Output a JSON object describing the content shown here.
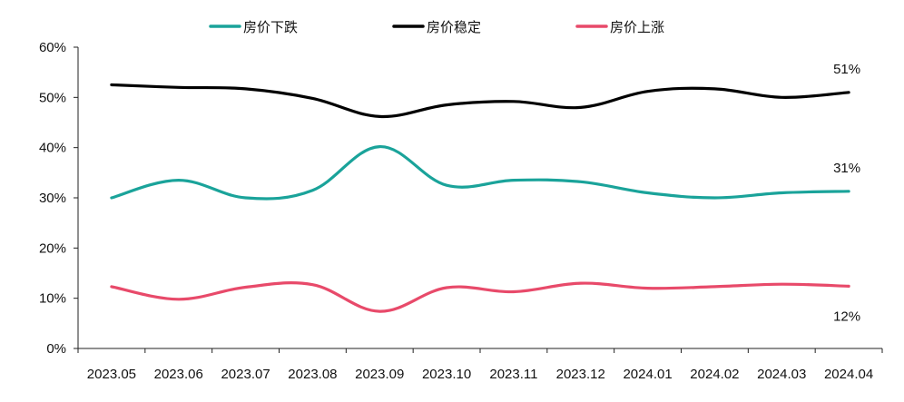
{
  "chart_data": {
    "type": "line",
    "categories": [
      "2023.05",
      "2023.06",
      "2023.07",
      "2023.08",
      "2023.09",
      "2023.10",
      "2023.11",
      "2023.12",
      "2024.01",
      "2024.02",
      "2024.03",
      "2024.04"
    ],
    "series": [
      {
        "name": "房价下跌",
        "color": "#1aa39a",
        "values": [
          30,
          33.5,
          30,
          31.5,
          40.2,
          32.5,
          33.5,
          33.2,
          31,
          30,
          31,
          31.3
        ]
      },
      {
        "name": "房价稳定",
        "color": "#000000",
        "values": [
          52.5,
          52,
          51.7,
          49.8,
          46.2,
          48.5,
          49.2,
          48,
          51.2,
          51.7,
          50,
          51
        ]
      },
      {
        "name": "房价上涨",
        "color": "#e84a6a",
        "values": [
          12.3,
          9.8,
          12.2,
          12.7,
          7.4,
          12.1,
          11.3,
          13,
          12,
          12.3,
          12.8,
          12.4
        ]
      }
    ],
    "yticks": [
      "0%",
      "10%",
      "20%",
      "30%",
      "40%",
      "50%",
      "60%"
    ],
    "ylim": [
      0,
      60
    ],
    "legend_position": "top",
    "end_labels": [
      {
        "series": "房价稳定",
        "text": "51%"
      },
      {
        "series": "房价下跌",
        "text": "31%"
      },
      {
        "series": "房价上涨",
        "text": "12%"
      }
    ],
    "grid": false
  }
}
